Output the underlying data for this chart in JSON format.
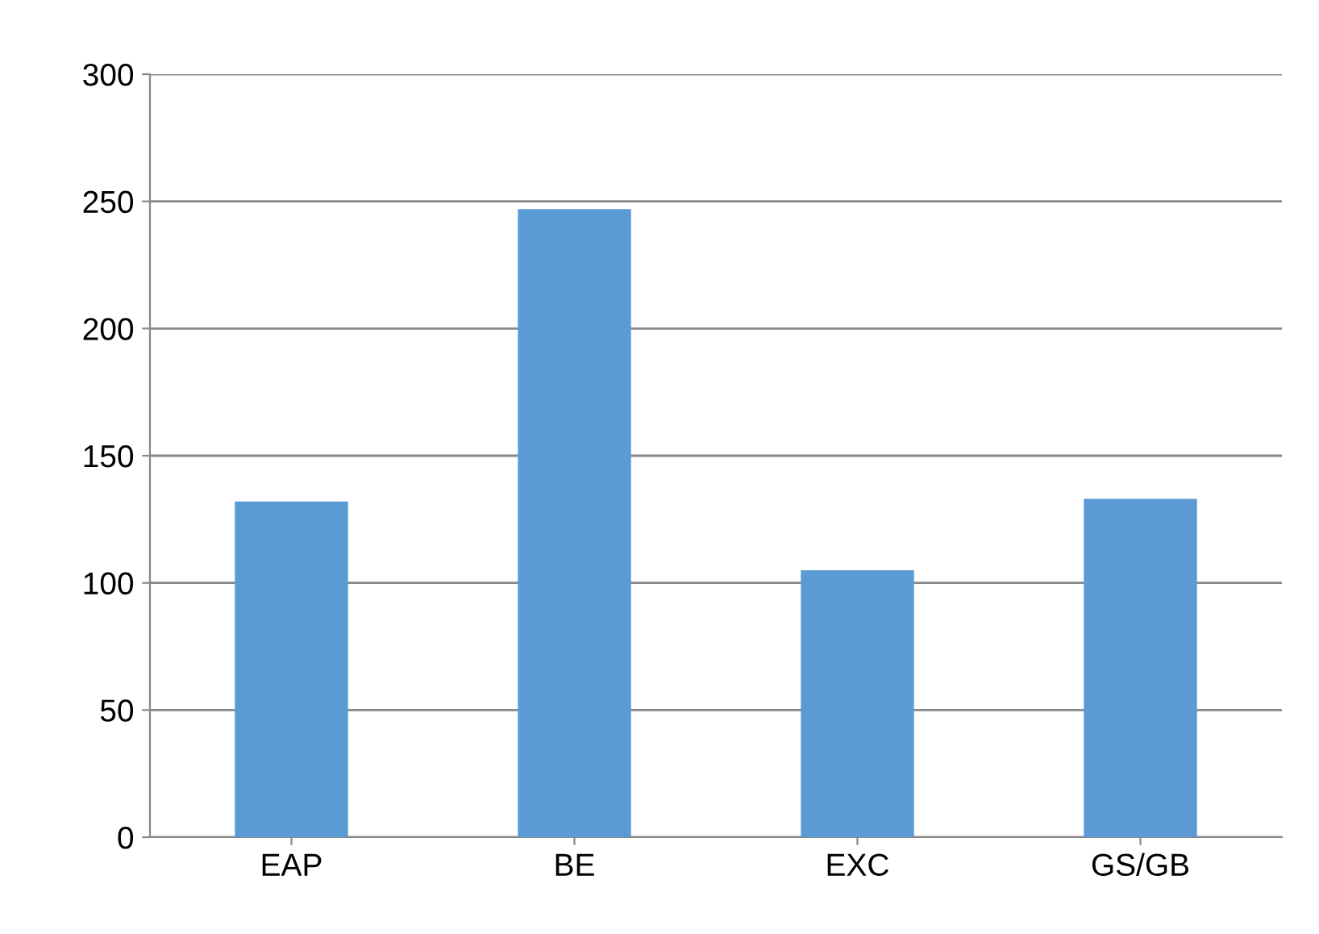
{
  "chart_data": {
    "type": "bar",
    "categories": [
      "EAP",
      "BE",
      "EXC",
      "GS/GB"
    ],
    "values": [
      132,
      247,
      105,
      133
    ],
    "color": "#5b9bd5",
    "ylim": [
      0,
      300
    ],
    "yticks": [
      0,
      50,
      100,
      150,
      200,
      250,
      300
    ],
    "grid": "y"
  }
}
